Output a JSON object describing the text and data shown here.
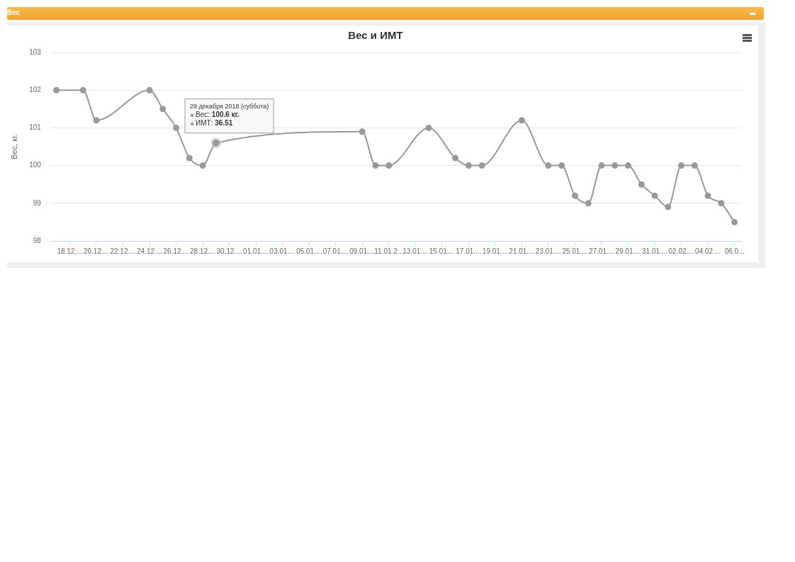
{
  "chart_data": {
    "type": "line",
    "title": "Вес и ИМТ",
    "ylabel": "Вес, кг.",
    "x": [
      "2018-12-17",
      "2018-12-19",
      "2018-12-20",
      "2018-12-24",
      "2018-12-25",
      "2018-12-26",
      "2018-12-27",
      "2018-12-28",
      "2018-12-29",
      "2019-01-09",
      "2019-01-10",
      "2019-01-11",
      "2019-01-14",
      "2019-01-16",
      "2019-01-17",
      "2019-01-18",
      "2019-01-21",
      "2019-01-23",
      "2019-01-24",
      "2019-01-25",
      "2019-01-26",
      "2019-01-27",
      "2019-01-28",
      "2019-01-29",
      "2019-01-30",
      "2019-01-31",
      "2019-02-01",
      "2019-02-02",
      "2019-02-03",
      "2019-02-04",
      "2019-02-05",
      "2019-02-06"
    ],
    "series": [
      {
        "color": "#999999",
        "values": [
          102,
          102,
          101.2,
          102,
          101.5,
          101.0,
          100.2,
          100,
          100.6,
          100.9,
          100,
          100,
          101.0,
          100.2,
          100,
          100,
          101.2,
          100,
          100,
          99.2,
          99.0,
          100,
          100,
          100,
          99.5,
          99.2,
          98.9,
          100,
          100,
          99.2,
          99.0,
          98.5
        ]
      }
    ],
    "xlim": [
      "2018-12-16T14:00",
      "2019-02-06T12:00"
    ],
    "xticks": [
      {
        "value": "2018-12-18",
        "label": "18.12...."
      },
      {
        "value": "2018-12-20",
        "label": "20.12...."
      },
      {
        "value": "2018-12-22",
        "label": "22.12...."
      },
      {
        "value": "2018-12-24",
        "label": "24.12...."
      },
      {
        "value": "2018-12-26",
        "label": "26.12...."
      },
      {
        "value": "2018-12-28",
        "label": "28.12...."
      },
      {
        "value": "2018-12-30",
        "label": "30.12...."
      },
      {
        "value": "2019-01-01",
        "label": "01.01...."
      },
      {
        "value": "2019-01-03",
        "label": "03.01...."
      },
      {
        "value": "2019-01-05",
        "label": "05.01...."
      },
      {
        "value": "2019-01-07",
        "label": "07.01...."
      },
      {
        "value": "2019-01-09",
        "label": "09.01...."
      },
      {
        "value": "2019-01-11",
        "label": "11.01.2..."
      },
      {
        "value": "2019-01-13",
        "label": "13.01...."
      },
      {
        "value": "2019-01-15",
        "label": "15.01...."
      },
      {
        "value": "2019-01-17",
        "label": "17.01...."
      },
      {
        "value": "2019-01-19",
        "label": "19.01...."
      },
      {
        "value": "2019-01-21",
        "label": "21.01...."
      },
      {
        "value": "2019-01-23",
        "label": "23.01...."
      },
      {
        "value": "2019-01-25",
        "label": "25.01...."
      },
      {
        "value": "2019-01-27",
        "label": "27.01...."
      },
      {
        "value": "2019-01-29",
        "label": "29.01...."
      },
      {
        "value": "2019-01-31",
        "label": "31.01...."
      },
      {
        "value": "2019-02-02",
        "label": "02.02...."
      },
      {
        "value": "2019-02-04",
        "label": "04.02...."
      },
      {
        "value": "2019-02-06",
        "label": "06.0..."
      }
    ],
    "ylim": [
      98,
      103
    ],
    "yticks": [
      98,
      99,
      100,
      101,
      102,
      103
    ],
    "grid": "y",
    "legend": false,
    "marker": "circle",
    "line_style": "solid",
    "annotations": [
      "Вес",
      {
        "text": "29 декабря 2018 (суббота)\nВес: 100.6 кг.\nИМТ: 36.51",
        "x": "2018-12-29",
        "y": 100.6
      }
    ]
  }
}
